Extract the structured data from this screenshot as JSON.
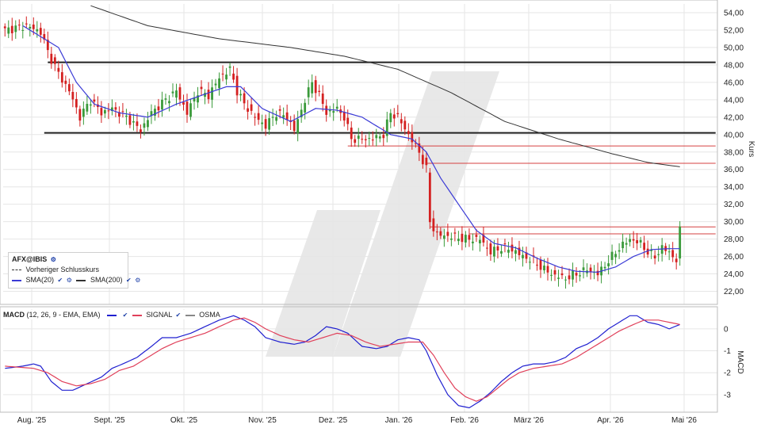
{
  "colors": {
    "candle_up": "#3a9a3a",
    "candle_down": "#d42020",
    "sma20": "#3b3bd6",
    "sma200": "#333333",
    "macd": "#2020d0",
    "signal": "#e0405a",
    "support_line": "#222222",
    "resistance_red": "#d64040",
    "grid": "#e6e6e6",
    "watermark": "#e8e8e8"
  },
  "legend": {
    "symbol": "AFX@IBIS",
    "prev_close": "Vorheriger Schlusskurs",
    "sma20": "SMA(20)",
    "sma200": "SMA(200)"
  },
  "macd_legend": {
    "params": "(12, 26, 9 - EMA, EMA)",
    "title": "MACD",
    "signal": "SIGNAL",
    "osma": "OSMA"
  },
  "chart_data": [
    {
      "type": "candlestick",
      "ylabel": "Kurs",
      "ylim": [
        20.5,
        55.0
      ],
      "y_ticks": [
        "54,00",
        "52,00",
        "50,00",
        "48,00",
        "46,00",
        "44,00",
        "42,00",
        "40,00",
        "38,00",
        "36,00",
        "34,00",
        "32,00",
        "30,00",
        "28,00",
        "26,00",
        "24,00",
        "22,00"
      ],
      "x_ticks": [
        "Aug. '25",
        "Sept. '25",
        "Okt. '25",
        "Nov. '25",
        "Dez. '25",
        "Jan. '26",
        "Feb. '26",
        "März '26",
        "Apr. '26",
        "Mai '26"
      ],
      "grid": true,
      "close_anchors": [
        [
          0,
          52.0
        ],
        [
          6,
          52.5
        ],
        [
          10,
          51.8
        ],
        [
          12,
          49.5
        ],
        [
          15,
          47.0
        ],
        [
          18,
          45.0
        ],
        [
          21,
          42.0
        ],
        [
          24,
          44.0
        ],
        [
          27,
          42.5
        ],
        [
          30,
          43.0
        ],
        [
          34,
          42.0
        ],
        [
          38,
          40.5
        ],
        [
          41,
          42.5
        ],
        [
          45,
          44.0
        ],
        [
          48,
          45.0
        ],
        [
          51,
          42.5
        ],
        [
          54,
          45.0
        ],
        [
          57,
          44.5
        ],
        [
          60,
          46.5
        ],
        [
          63,
          47.5
        ],
        [
          65,
          45.0
        ],
        [
          67,
          43.5
        ],
        [
          70,
          42.0
        ],
        [
          73,
          41.0
        ],
        [
          76,
          42.5
        ],
        [
          79,
          42.0
        ],
        [
          81,
          40.5
        ],
        [
          84,
          44.0
        ],
        [
          86,
          46.0
        ],
        [
          88,
          44.5
        ],
        [
          90,
          42.5
        ],
        [
          93,
          43.0
        ],
        [
          95,
          42.0
        ],
        [
          97,
          39.5
        ],
        [
          100,
          39.5
        ],
        [
          103,
          39.5
        ],
        [
          106,
          40.0
        ],
        [
          108,
          42.5
        ],
        [
          110,
          42.0
        ],
        [
          113,
          40.0
        ],
        [
          116,
          38.0
        ],
        [
          118,
          36.0
        ],
        [
          119,
          30.0
        ],
        [
          121,
          28.5
        ],
        [
          125,
          28.3
        ],
        [
          129,
          28.0
        ],
        [
          133,
          28.0
        ],
        [
          136,
          26.5
        ],
        [
          139,
          27.0
        ],
        [
          142,
          26.8
        ],
        [
          145,
          26.0
        ],
        [
          148,
          25.5
        ],
        [
          151,
          24.5
        ],
        [
          154,
          23.8
        ],
        [
          157,
          23.5
        ],
        [
          160,
          24.0
        ],
        [
          163,
          24.5
        ],
        [
          166,
          24.0
        ],
        [
          169,
          25.5
        ],
        [
          172,
          27.0
        ],
        [
          175,
          28.0
        ],
        [
          178,
          27.5
        ],
        [
          180,
          26.5
        ],
        [
          182,
          26.0
        ],
        [
          184,
          27.0
        ],
        [
          186,
          26.5
        ],
        [
          188,
          25.5
        ],
        [
          189,
          29.0
        ]
      ],
      "sma20_anchors": [
        [
          5,
          52.5
        ],
        [
          15,
          50.0
        ],
        [
          20,
          46.0
        ],
        [
          25,
          43.5
        ],
        [
          32,
          42.5
        ],
        [
          40,
          42.0
        ],
        [
          48,
          43.5
        ],
        [
          55,
          44.5
        ],
        [
          62,
          45.5
        ],
        [
          66,
          45.5
        ],
        [
          72,
          43.0
        ],
        [
          80,
          41.5
        ],
        [
          87,
          43.0
        ],
        [
          93,
          42.8
        ],
        [
          100,
          42.0
        ],
        [
          108,
          40.0
        ],
        [
          114,
          39.5
        ],
        [
          118,
          38.0
        ],
        [
          122,
          35.0
        ],
        [
          127,
          32.0
        ],
        [
          132,
          29.0
        ],
        [
          137,
          27.5
        ],
        [
          143,
          27.0
        ],
        [
          149,
          25.8
        ],
        [
          155,
          24.8
        ],
        [
          160,
          24.3
        ],
        [
          166,
          24.2
        ],
        [
          171,
          24.8
        ],
        [
          176,
          26.0
        ],
        [
          181,
          26.8
        ],
        [
          186,
          26.9
        ],
        [
          189,
          26.9
        ]
      ],
      "sma200_anchors": [
        [
          24,
          54.8
        ],
        [
          40,
          52.5
        ],
        [
          60,
          51.0
        ],
        [
          80,
          50.0
        ],
        [
          95,
          49.0
        ],
        [
          110,
          47.5
        ],
        [
          125,
          44.8
        ],
        [
          140,
          41.5
        ],
        [
          155,
          39.5
        ],
        [
          170,
          37.8
        ],
        [
          180,
          36.8
        ],
        [
          189,
          36.3
        ]
      ],
      "horizontal_levels": [
        {
          "value": 48.3,
          "color": "#222222",
          "from": 12,
          "to": 199
        },
        {
          "value": 40.2,
          "color": "#222222",
          "from": 11,
          "to": 199
        },
        {
          "value": 38.7,
          "color": "#d64040",
          "from": 96,
          "to": 199
        },
        {
          "value": 36.7,
          "color": "#d64040",
          "from": 118,
          "to": 199
        },
        {
          "value": 29.4,
          "color": "#d64040",
          "from": 119,
          "to": 199
        },
        {
          "value": 28.6,
          "color": "#d64040",
          "from": 130,
          "to": 199
        }
      ]
    },
    {
      "type": "line",
      "title": "MACD",
      "ylim": [
        -3.8,
        0.9
      ],
      "y_ticks": [
        "0",
        "-1",
        "-2",
        "-3"
      ],
      "series": [
        {
          "name": "MACD",
          "points": [
            [
              0,
              -1.8
            ],
            [
              5,
              -1.7
            ],
            [
              8,
              -1.6
            ],
            [
              10,
              -1.7
            ],
            [
              13,
              -2.4
            ],
            [
              16,
              -2.8
            ],
            [
              19,
              -2.8
            ],
            [
              23,
              -2.5
            ],
            [
              27,
              -2.2
            ],
            [
              30,
              -1.8
            ],
            [
              33,
              -1.6
            ],
            [
              37,
              -1.3
            ],
            [
              41,
              -0.8
            ],
            [
              44,
              -0.4
            ],
            [
              48,
              -0.4
            ],
            [
              52,
              -0.2
            ],
            [
              56,
              0.1
            ],
            [
              60,
              0.4
            ],
            [
              64,
              0.6
            ],
            [
              67,
              0.4
            ],
            [
              70,
              0.1
            ],
            [
              73,
              -0.4
            ],
            [
              77,
              -0.6
            ],
            [
              81,
              -0.7
            ],
            [
              84,
              -0.6
            ],
            [
              87,
              -0.3
            ],
            [
              90,
              0.1
            ],
            [
              93,
              0.0
            ],
            [
              96,
              -0.2
            ],
            [
              100,
              -0.8
            ],
            [
              104,
              -0.9
            ],
            [
              107,
              -0.8
            ],
            [
              110,
              -0.5
            ],
            [
              113,
              -0.4
            ],
            [
              116,
              -0.5
            ],
            [
              118,
              -1.0
            ],
            [
              121,
              -2.1
            ],
            [
              124,
              -3.0
            ],
            [
              127,
              -3.5
            ],
            [
              130,
              -3.6
            ],
            [
              133,
              -3.3
            ],
            [
              136,
              -2.9
            ],
            [
              139,
              -2.4
            ],
            [
              142,
              -2.0
            ],
            [
              145,
              -1.7
            ],
            [
              148,
              -1.6
            ],
            [
              151,
              -1.6
            ],
            [
              154,
              -1.5
            ],
            [
              157,
              -1.3
            ],
            [
              160,
              -0.9
            ],
            [
              163,
              -0.7
            ],
            [
              166,
              -0.4
            ],
            [
              169,
              0.0
            ],
            [
              172,
              0.3
            ],
            [
              175,
              0.6
            ],
            [
              177,
              0.6
            ],
            [
              180,
              0.3
            ],
            [
              183,
              0.2
            ],
            [
              186,
              0.0
            ],
            [
              189,
              0.2
            ]
          ]
        },
        {
          "name": "SIGNAL",
          "points": [
            [
              0,
              -1.7
            ],
            [
              8,
              -1.8
            ],
            [
              12,
              -2.0
            ],
            [
              16,
              -2.4
            ],
            [
              20,
              -2.6
            ],
            [
              24,
              -2.5
            ],
            [
              28,
              -2.3
            ],
            [
              32,
              -1.9
            ],
            [
              36,
              -1.7
            ],
            [
              40,
              -1.3
            ],
            [
              44,
              -0.9
            ],
            [
              48,
              -0.6
            ],
            [
              52,
              -0.4
            ],
            [
              56,
              -0.2
            ],
            [
              60,
              0.1
            ],
            [
              64,
              0.4
            ],
            [
              67,
              0.5
            ],
            [
              70,
              0.3
            ],
            [
              73,
              0.0
            ],
            [
              77,
              -0.3
            ],
            [
              81,
              -0.5
            ],
            [
              85,
              -0.6
            ],
            [
              89,
              -0.4
            ],
            [
              93,
              -0.2
            ],
            [
              97,
              -0.3
            ],
            [
              101,
              -0.6
            ],
            [
              105,
              -0.8
            ],
            [
              109,
              -0.7
            ],
            [
              113,
              -0.6
            ],
            [
              117,
              -0.6
            ],
            [
              120,
              -1.2
            ],
            [
              123,
              -2.0
            ],
            [
              126,
              -2.7
            ],
            [
              129,
              -3.1
            ],
            [
              132,
              -3.3
            ],
            [
              135,
              -3.1
            ],
            [
              138,
              -2.7
            ],
            [
              141,
              -2.3
            ],
            [
              144,
              -2.0
            ],
            [
              148,
              -1.8
            ],
            [
              152,
              -1.7
            ],
            [
              156,
              -1.6
            ],
            [
              160,
              -1.3
            ],
            [
              164,
              -0.9
            ],
            [
              168,
              -0.5
            ],
            [
              172,
              -0.1
            ],
            [
              176,
              0.2
            ],
            [
              179,
              0.4
            ],
            [
              183,
              0.4
            ],
            [
              186,
              0.3
            ],
            [
              189,
              0.2
            ]
          ]
        }
      ]
    }
  ]
}
